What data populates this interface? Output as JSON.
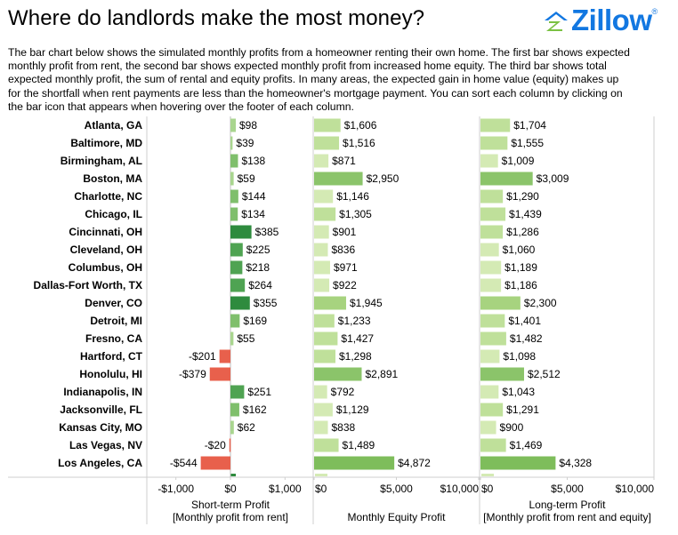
{
  "title": "Where do landlords make the most money?",
  "logo": {
    "text": "Zillow",
    "mark": "®",
    "color": "#1277e1"
  },
  "description_lines": [
    "The bar chart below shows the simulated monthly profits from a homeowner renting their own home. The first bar shows expected",
    "monthly profit from rent, the second bar shows expected monthly profit from increased home equity. The third bar shows total",
    "expected monthly profit, the sum of rental and equity profits. In many areas, the expected gain in home value (equity) makes up",
    "for the shortfall when rent payments are less than the homeowner's mortgage payment. You can sort each column by clicking on",
    "the bar icon that appears when hovering over the footer of each column."
  ],
  "chart_data": {
    "type": "bar",
    "orientation": "horizontal",
    "categories": [
      "Atlanta, GA",
      "Baltimore, MD",
      "Birmingham, AL",
      "Boston, MA",
      "Charlotte, NC",
      "Chicago, IL",
      "Cincinnati, OH",
      "Cleveland, OH",
      "Columbus, OH",
      "Dallas-Fort Worth, TX",
      "Denver, CO",
      "Detroit, MI",
      "Fresno, CA",
      "Hartford, CT",
      "Honolulu, HI",
      "Indianapolis, IN",
      "Jacksonville, FL",
      "Kansas City, MO",
      "Las Vegas, NV",
      "Los Angeles, CA"
    ],
    "panels": [
      {
        "xlabel_line1": "Short-term Profit",
        "xlabel_line2": "[Monthly profit from rent]",
        "xlim": [
          -1500,
          1500
        ],
        "ticks": [
          -1000,
          0,
          1000
        ],
        "tick_labels": [
          "-$1,000",
          "$0",
          "$1,000"
        ],
        "values": [
          98,
          39,
          138,
          59,
          144,
          134,
          385,
          225,
          218,
          264,
          355,
          169,
          55,
          -201,
          -379,
          251,
          162,
          62,
          -20,
          -544
        ],
        "labels": [
          "$98",
          "$39",
          "$138",
          "$59",
          "$144",
          "$134",
          "$385",
          "$225",
          "$218",
          "$264",
          "$355",
          "$169",
          "$55",
          "-$201",
          "-$379",
          "$251",
          "$162",
          "$62",
          "-$20",
          "-$544"
        ]
      },
      {
        "xlabel_line1": "Monthly Equity Profit",
        "xlabel_line2": "",
        "xlim": [
          0,
          10000
        ],
        "ticks": [
          0,
          5000,
          10000
        ],
        "tick_labels": [
          "$0",
          "$5,000",
          "$10,000"
        ],
        "values": [
          1606,
          1516,
          871,
          2950,
          1146,
          1305,
          901,
          836,
          971,
          922,
          1945,
          1233,
          1427,
          1298,
          2891,
          792,
          1129,
          838,
          1489,
          4872
        ],
        "labels": [
          "$1,606",
          "$1,516",
          "$871",
          "$2,950",
          "$1,146",
          "$1,305",
          "$901",
          "$836",
          "$971",
          "$922",
          "$1,945",
          "$1,233",
          "$1,427",
          "$1,298",
          "$2,891",
          "$792",
          "$1,129",
          "$838",
          "$1,489",
          "$4,872"
        ]
      },
      {
        "xlabel_line1": "Long-term Profit",
        "xlabel_line2": "[Monthly profit from rent and equity]",
        "xlim": [
          0,
          10000
        ],
        "ticks": [
          0,
          5000,
          10000
        ],
        "tick_labels": [
          "$0",
          "$5,000",
          "$10,000"
        ],
        "values": [
          1704,
          1555,
          1009,
          3009,
          1290,
          1439,
          1286,
          1060,
          1189,
          1186,
          2300,
          1401,
          1482,
          1098,
          2512,
          1043,
          1291,
          900,
          1469,
          4328
        ],
        "labels": [
          "$1,704",
          "$1,555",
          "$1,009",
          "$3,009",
          "$1,290",
          "$1,439",
          "$1,286",
          "$1,060",
          "$1,189",
          "$1,186",
          "$2,300",
          "$1,401",
          "$1,482",
          "$1,098",
          "$2,512",
          "$1,043",
          "$1,291",
          "$900",
          "$1,469",
          "$4,328"
        ]
      }
    ],
    "colors": {
      "positive_dark": "#2e8b3e",
      "positive_light": "#c7e6a6",
      "negative": "#e8604c",
      "equity_light": "#d4eab4",
      "equity_dark": "#8bc46a",
      "grid": "#cfcfcf",
      "zero_line": "#bdbdbd"
    },
    "grid": false,
    "legend": "none"
  }
}
